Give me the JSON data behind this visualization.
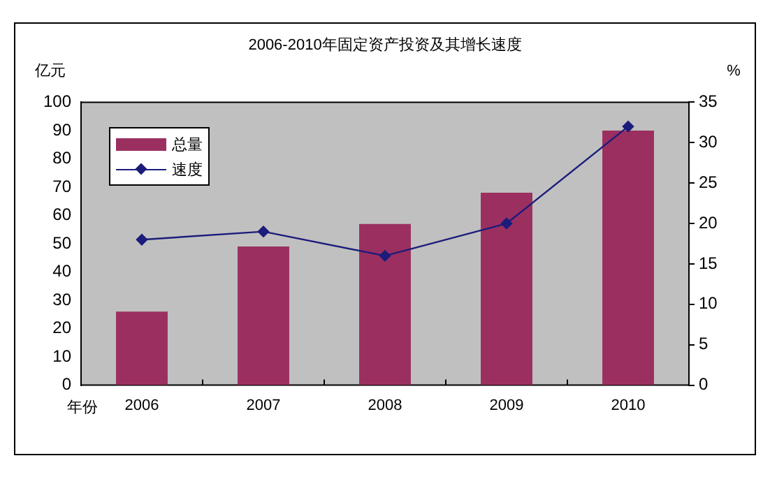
{
  "chart_data": {
    "type": "bar",
    "title": "2006-2010年固定资产投资及其增长速度",
    "xlabel": "年份",
    "ylabel": "亿元",
    "y2label": "%",
    "categories": [
      "2006",
      "2007",
      "2008",
      "2009",
      "2010"
    ],
    "series": [
      {
        "name": "总量",
        "color": "#9b3060",
        "values": [
          26,
          49,
          57,
          68,
          90
        ]
      },
      {
        "name": "速度",
        "type": "line",
        "axis": "y2",
        "color": "#1c1c7c",
        "marker": "diamond",
        "values": [
          18,
          19,
          16,
          20,
          32
        ]
      }
    ],
    "ylim": [
      0,
      100
    ],
    "yticks": [
      0,
      10,
      20,
      30,
      40,
      50,
      60,
      70,
      80,
      90,
      100
    ],
    "y2lim": [
      0,
      35
    ],
    "y2ticks": [
      0,
      5,
      10,
      15,
      20,
      25,
      30,
      35
    ],
    "grid": false,
    "legend": "top left"
  }
}
